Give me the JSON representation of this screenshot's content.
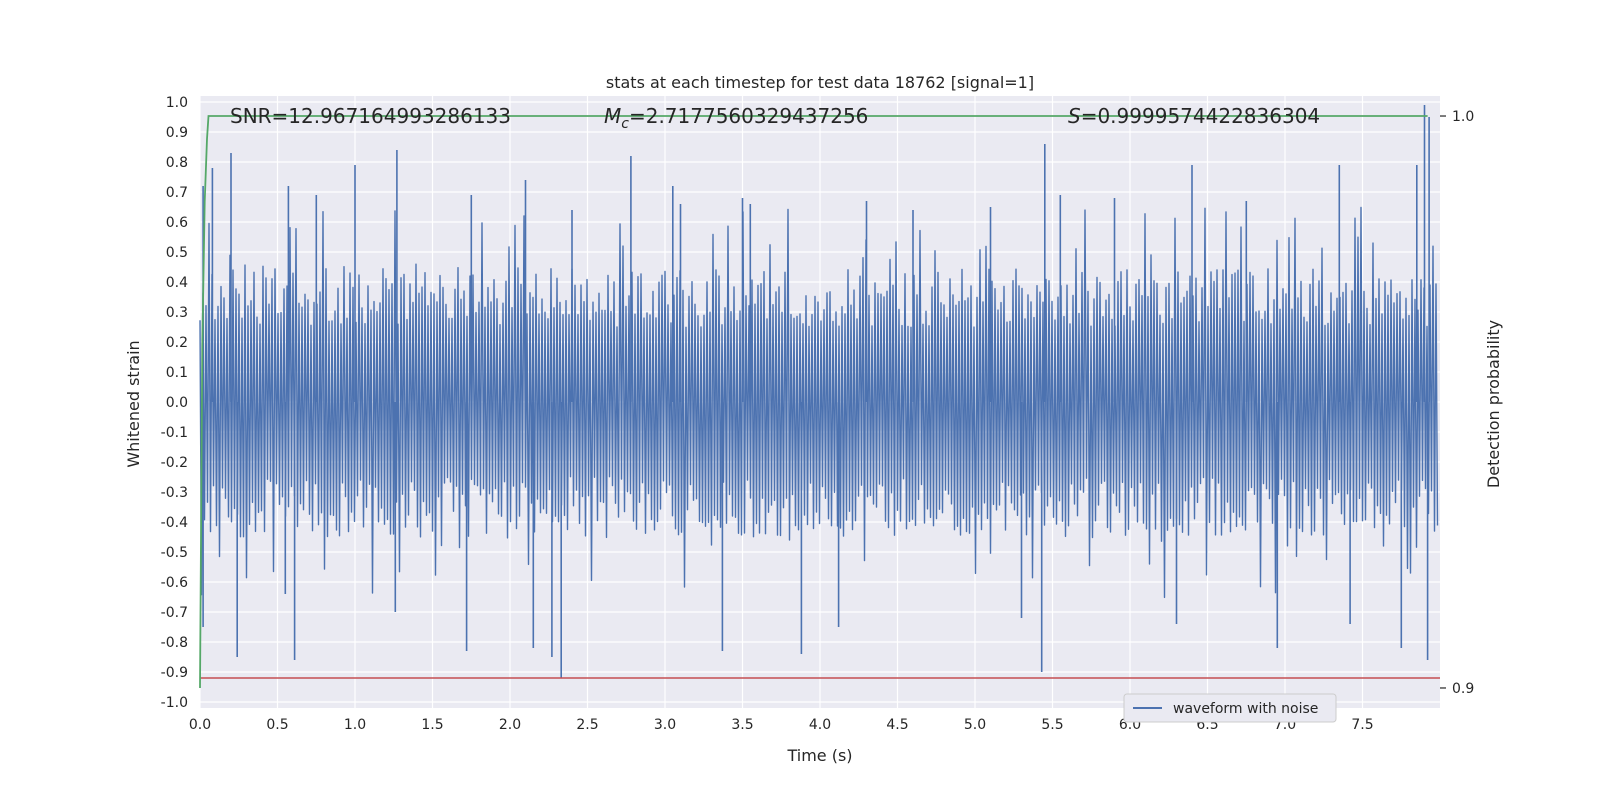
{
  "chart_data": {
    "type": "line",
    "title": "stats at each timestep for test data 18762 [signal=1]",
    "xlabel": "Time (s)",
    "ylabel": "Whitened strain",
    "y2label": "Detection probability",
    "xlim": [
      0.0,
      8.0
    ],
    "ylim": [
      -1.02,
      1.02
    ],
    "y2lim": [
      0.8965,
      1.0035
    ],
    "x_ticks": [
      "0.0",
      "0.5",
      "1.0",
      "1.5",
      "2.0",
      "2.5",
      "3.0",
      "3.5",
      "4.0",
      "4.5",
      "5.0",
      "5.5",
      "6.0",
      "6.5",
      "7.0",
      "7.5"
    ],
    "y_ticks": [
      "1.0",
      "0.9",
      "0.8",
      "0.7",
      "0.6",
      "0.5",
      "0.4",
      "0.3",
      "0.2",
      "0.1",
      "0.0",
      "-0.1",
      "-0.2",
      "-0.3",
      "-0.4",
      "-0.5",
      "-0.6",
      "-0.7",
      "-0.8",
      "-0.9",
      "-1.0"
    ],
    "y2_ticks": [
      "1.0",
      "0.9"
    ],
    "grid": true,
    "legend_position": "lower-right",
    "series": [
      {
        "name": "waveform with noise",
        "color": "#4c72b0",
        "axis": "left",
        "sample_rate_hz": 2048,
        "envelope_typical": 0.45,
        "peaks": [
          [
            0.02,
            0.72
          ],
          [
            0.08,
            0.78
          ],
          [
            0.2,
            0.83
          ],
          [
            0.57,
            0.72
          ],
          [
            0.75,
            0.69
          ],
          [
            1.0,
            0.79
          ],
          [
            1.27,
            0.84
          ],
          [
            1.75,
            0.69
          ],
          [
            2.1,
            0.74
          ],
          [
            2.4,
            0.64
          ],
          [
            2.78,
            0.82
          ],
          [
            3.05,
            0.72
          ],
          [
            3.1,
            0.66
          ],
          [
            3.5,
            0.68
          ],
          [
            3.55,
            0.66
          ],
          [
            4.3,
            0.67
          ],
          [
            4.6,
            0.64
          ],
          [
            5.1,
            0.65
          ],
          [
            5.45,
            0.86
          ],
          [
            5.55,
            0.69
          ],
          [
            5.9,
            0.68
          ],
          [
            6.4,
            0.79
          ],
          [
            6.75,
            0.67
          ],
          [
            7.35,
            0.79
          ],
          [
            7.85,
            0.79
          ],
          [
            7.9,
            0.99
          ],
          [
            7.93,
            0.95
          ]
        ],
        "troughs": [
          [
            0.02,
            -0.75
          ],
          [
            0.24,
            -0.85
          ],
          [
            0.55,
            -0.64
          ],
          [
            0.61,
            -0.86
          ],
          [
            1.26,
            -0.7
          ],
          [
            1.72,
            -0.83
          ],
          [
            2.15,
            -0.82
          ],
          [
            2.27,
            -0.85
          ],
          [
            2.33,
            -0.92
          ],
          [
            3.37,
            -0.83
          ],
          [
            3.88,
            -0.84
          ],
          [
            4.12,
            -0.75
          ],
          [
            5.43,
            -0.9
          ],
          [
            5.3,
            -0.72
          ],
          [
            6.3,
            -0.74
          ],
          [
            6.95,
            -0.82
          ],
          [
            7.42,
            -0.74
          ],
          [
            7.75,
            -0.82
          ],
          [
            7.92,
            -0.86
          ]
        ]
      },
      {
        "name": "",
        "color": "#55a868",
        "axis": "right",
        "x": [
          0.0,
          0.015,
          0.03,
          0.045,
          0.055,
          7.92
        ],
        "y": [
          0.9,
          0.96,
          0.985,
          0.996,
          1.0,
          1.0
        ]
      },
      {
        "name": "",
        "color": "#c44e52",
        "axis": "left",
        "x": [
          0.0,
          8.0
        ],
        "y": [
          -0.92,
          -0.92
        ]
      }
    ],
    "annotations": {
      "snr": "SNR=12.967164993286133",
      "mc_symbol": "M",
      "mc_sub": "c",
      "mc_value": "=2.7177560329437256",
      "s_symbol": "S",
      "s_value": "=0.9999574422836304"
    }
  }
}
